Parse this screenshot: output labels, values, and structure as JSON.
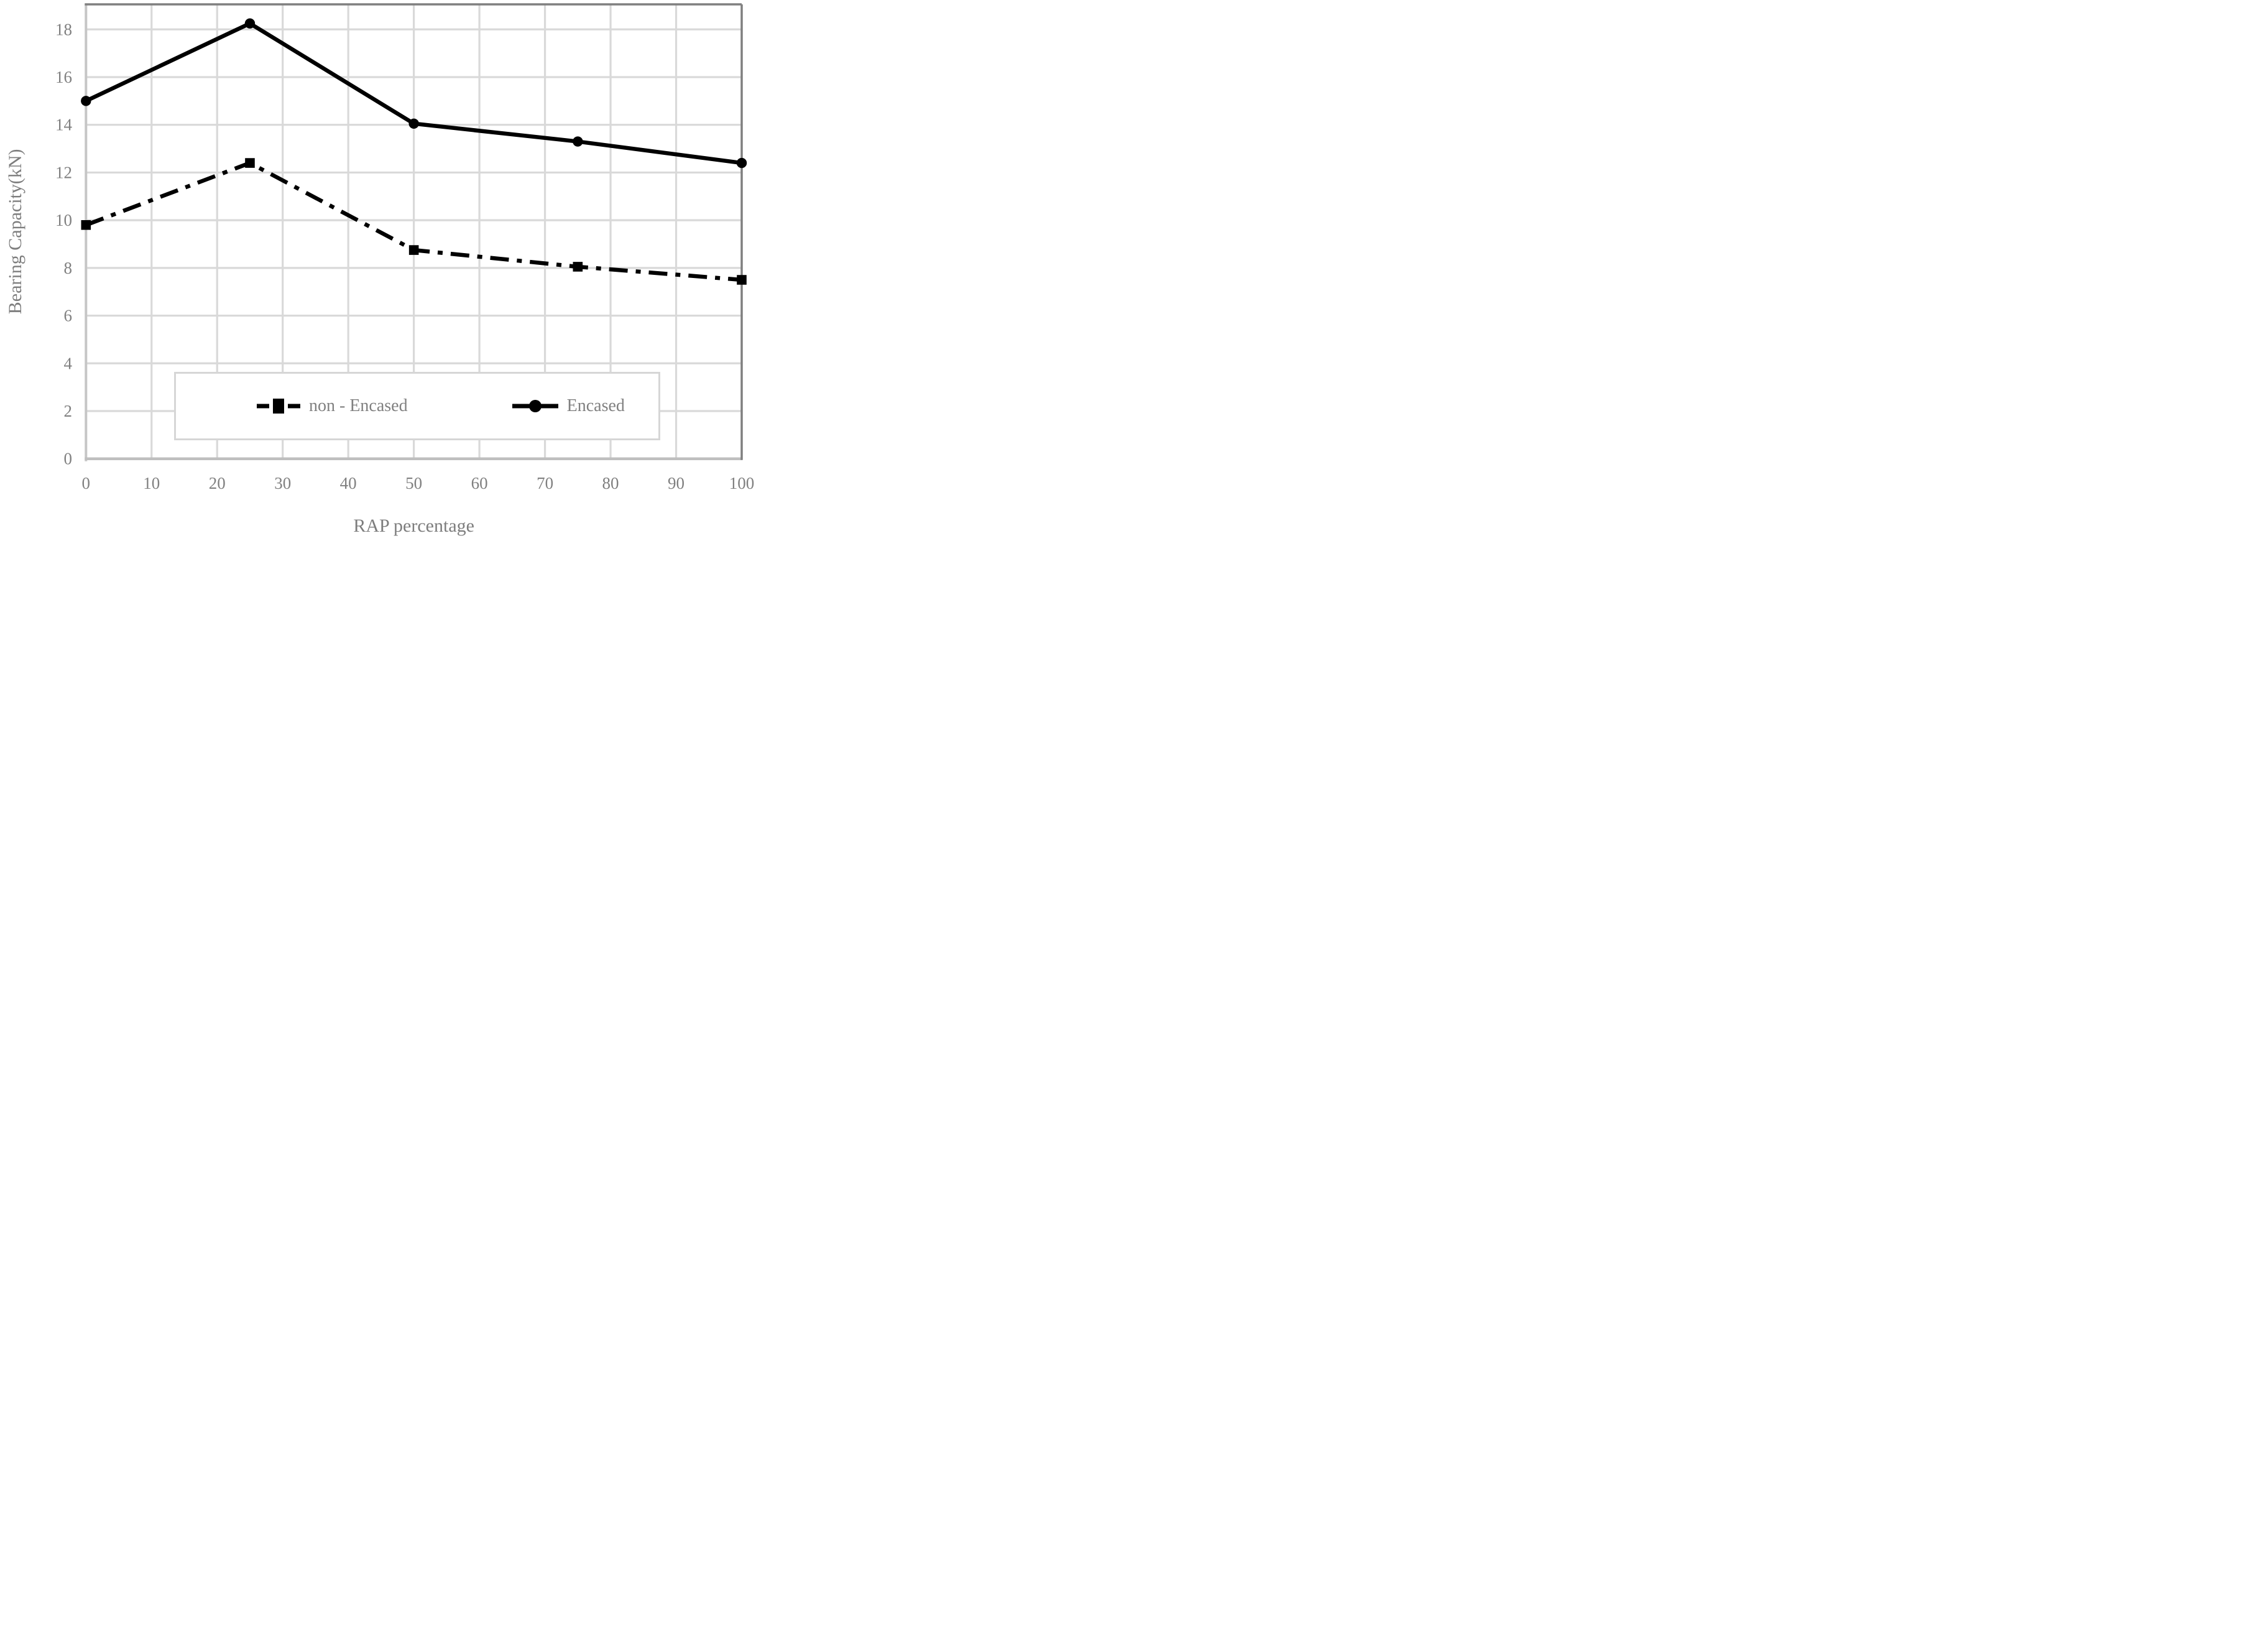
{
  "chart_data": {
    "type": "line",
    "title": "",
    "xlabel": "RAP percentage",
    "ylabel": "Bearing Capacity(kN)",
    "x": [
      0,
      25,
      50,
      75,
      100
    ],
    "series": [
      {
        "name": "non - Encased",
        "values": [
          9.8,
          12.4,
          8.75,
          8.05,
          7.5
        ],
        "color": "#000000",
        "line_style": "dash-dot",
        "marker": "square"
      },
      {
        "name": "Encased",
        "values": [
          15.0,
          18.25,
          14.05,
          13.3,
          12.4
        ],
        "color": "#000000",
        "line_style": "solid",
        "marker": "circle"
      }
    ],
    "xlim": [
      0,
      100
    ],
    "ylim": [
      0,
      19
    ],
    "x_ticks": [
      0,
      10,
      20,
      30,
      40,
      50,
      60,
      70,
      80,
      90,
      100
    ],
    "y_ticks": [
      0,
      2,
      4,
      6,
      8,
      10,
      12,
      14,
      16,
      18
    ],
    "grid": true,
    "legend_position": "inside-bottom-center-box"
  },
  "colors": {
    "series": "#000000",
    "tick_text": "#808080",
    "gridline": "#d9d9d9",
    "axis_line": "#c6c6c6",
    "baseline": "#bfbfbf",
    "frame_top_right": "#7f7f7f",
    "legend_border": "#d6d6d6",
    "background": "#ffffff"
  }
}
